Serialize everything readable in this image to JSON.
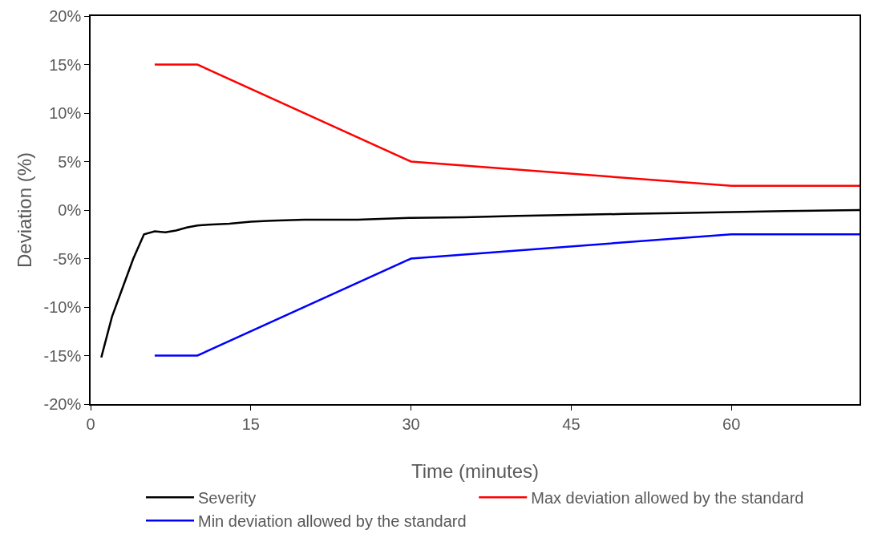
{
  "chart_data": {
    "type": "line",
    "xlabel": "Time (minutes)",
    "ylabel": "Deviation (%)",
    "xlim": [
      0,
      72
    ],
    "xticks": [
      0,
      15,
      30,
      45,
      60
    ],
    "ylim": [
      -20,
      20
    ],
    "yticks": [
      {
        "value": -20,
        "label": "-20%"
      },
      {
        "value": -15,
        "label": "-15%"
      },
      {
        "value": -10,
        "label": "-10%"
      },
      {
        "value": -5,
        "label": "-5%"
      },
      {
        "value": 0,
        "label": "0%"
      },
      {
        "value": 5,
        "label": "5%"
      },
      {
        "value": 10,
        "label": "10%"
      },
      {
        "value": 15,
        "label": "15%"
      },
      {
        "value": 20,
        "label": "20%"
      }
    ],
    "grid": false,
    "legend": "bottom",
    "marker": "none",
    "line_style": "solid",
    "series": [
      {
        "name": "Severity",
        "color": "#000000",
        "x": [
          1,
          2,
          3,
          4,
          5,
          6,
          7,
          8,
          9,
          10,
          11,
          13,
          15,
          17,
          20,
          25,
          30,
          35,
          40,
          45,
          50,
          55,
          60,
          65,
          72
        ],
        "values": [
          -15.2,
          -11,
          -8,
          -5,
          -2.5,
          -2.2,
          -2.3,
          -2.1,
          -1.8,
          -1.6,
          -1.5,
          -1.4,
          -1.2,
          -1.1,
          -1.0,
          -1.0,
          -0.8,
          -0.75,
          -0.6,
          -0.5,
          -0.4,
          -0.3,
          -0.2,
          -0.1,
          0
        ]
      },
      {
        "name": "Max deviation allowed by the standard",
        "color": "#ff0000",
        "x": [
          6,
          10,
          30,
          60,
          72
        ],
        "values": [
          15,
          15,
          5,
          2.5,
          2.5
        ]
      },
      {
        "name": "Min deviation allowed by the standard",
        "color": "#0000ff",
        "x": [
          6,
          10,
          30,
          60,
          72
        ],
        "values": [
          -15,
          -15,
          -5,
          -2.5,
          -2.5
        ]
      }
    ]
  }
}
